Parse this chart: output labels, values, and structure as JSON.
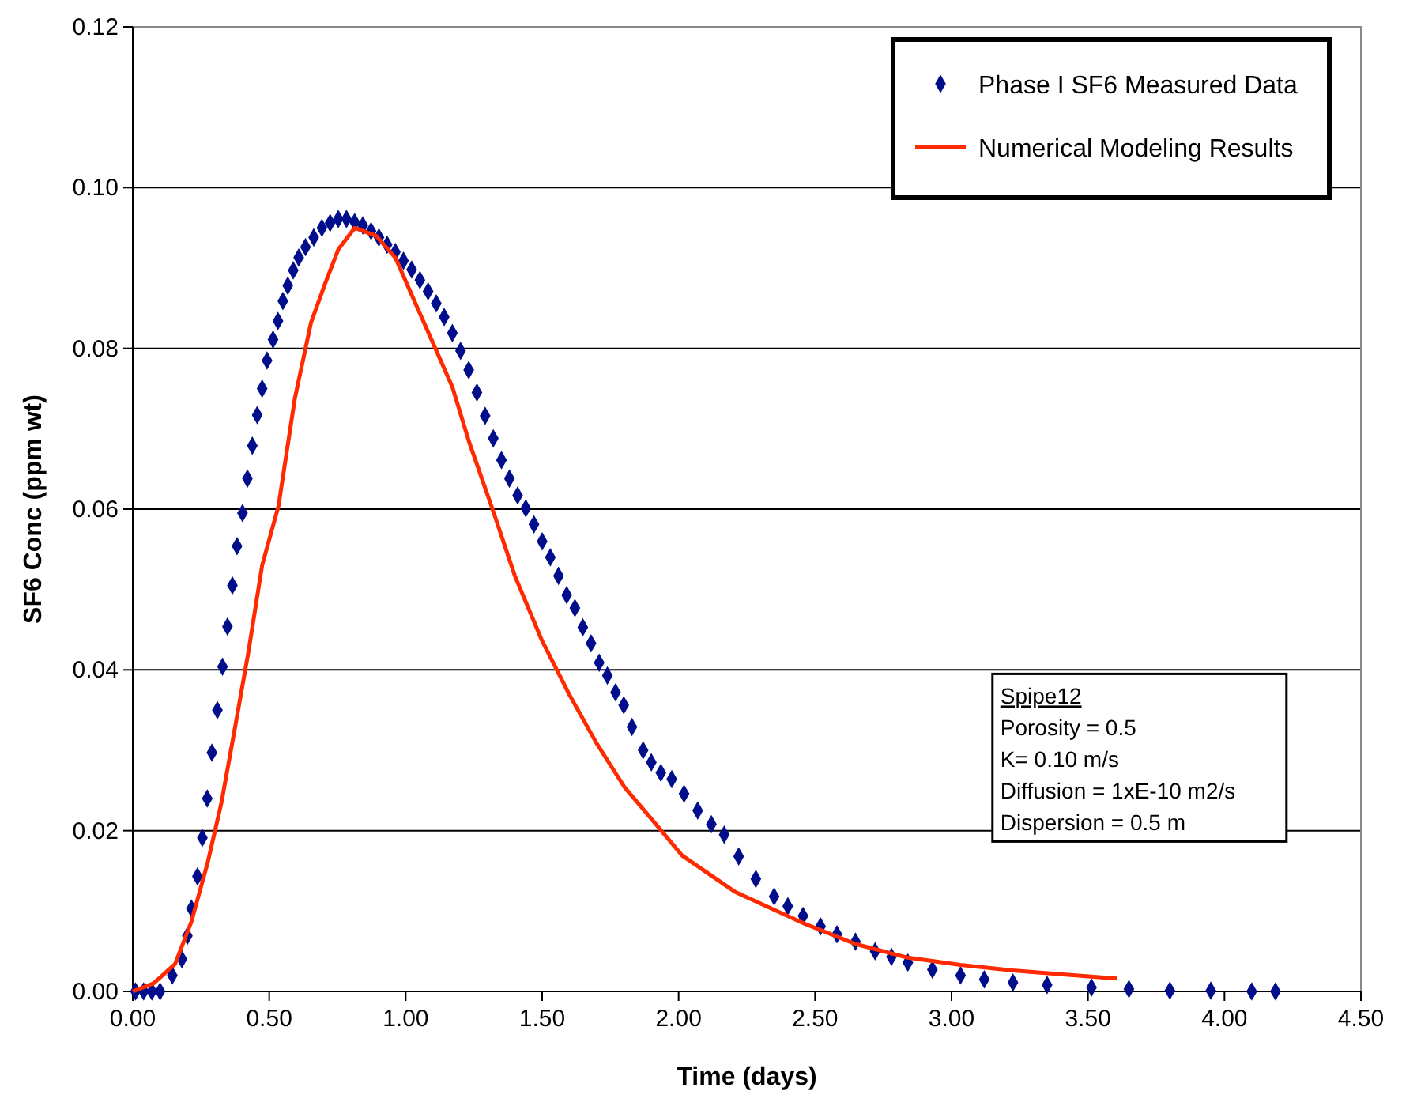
{
  "chart_data": {
    "type": "scatter",
    "xlabel": "Time (days)",
    "ylabel": "SF6 Conc (ppm wt)",
    "xlim": [
      0,
      4.5
    ],
    "xticks": [
      {
        "value": 0,
        "label": "0.00"
      },
      {
        "value": 0.5,
        "label": "0.50"
      },
      {
        "value": 1,
        "label": "1.00"
      },
      {
        "value": 1.5,
        "label": "1.50"
      },
      {
        "value": 2,
        "label": "2.00"
      },
      {
        "value": 2.5,
        "label": "2.50"
      },
      {
        "value": 3,
        "label": "3.00"
      },
      {
        "value": 3.5,
        "label": "3.50"
      },
      {
        "value": 4,
        "label": "4.00"
      },
      {
        "value": 4.5,
        "label": "4.50"
      }
    ],
    "ylim": [
      0,
      0.12
    ],
    "yticks": [
      {
        "value": 0,
        "label": "0.00"
      },
      {
        "value": 0.02,
        "label": "0.02"
      },
      {
        "value": 0.04,
        "label": "0.04"
      },
      {
        "value": 0.06,
        "label": "0.06"
      },
      {
        "value": 0.08,
        "label": "0.08"
      },
      {
        "value": 0.1,
        "label": "0.10"
      },
      {
        "value": 0.12,
        "label": "0.12"
      }
    ],
    "grid": "y",
    "legend": "top right",
    "annotations": [
      "Spipe12",
      "Porosity = 0.5",
      "K= 0.10 m/s",
      "Diffusion = 1xE-10 m2/s",
      "Dispersion  = 0.5 m"
    ],
    "series": [
      {
        "name": "Phase I SF6 Measured Data",
        "marker": "diamond",
        "color": "#000e8c",
        "x": [
          0.01,
          0.04,
          0.07,
          0.1,
          0.145,
          0.18,
          0.2,
          0.215,
          0.237,
          0.255,
          0.273,
          0.29,
          0.31,
          0.329,
          0.347,
          0.365,
          0.382,
          0.402,
          0.42,
          0.438,
          0.456,
          0.474,
          0.492,
          0.514,
          0.532,
          0.55,
          0.568,
          0.588,
          0.608,
          0.633,
          0.663,
          0.693,
          0.723,
          0.753,
          0.783,
          0.813,
          0.843,
          0.873,
          0.902,
          0.932,
          0.962,
          0.992,
          1.022,
          1.052,
          1.082,
          1.112,
          1.141,
          1.171,
          1.201,
          1.231,
          1.261,
          1.291,
          1.321,
          1.351,
          1.38,
          1.41,
          1.44,
          1.47,
          1.5,
          1.53,
          1.56,
          1.59,
          1.62,
          1.649,
          1.679,
          1.709,
          1.739,
          1.769,
          1.799,
          1.829,
          1.87,
          1.9,
          1.935,
          1.975,
          2.02,
          2.07,
          2.12,
          2.167,
          2.22,
          2.283,
          2.35,
          2.4,
          2.456,
          2.52,
          2.58,
          2.648,
          2.72,
          2.78,
          2.84,
          2.93,
          3.033,
          3.12,
          3.225,
          3.35,
          3.513,
          3.65,
          3.8,
          3.95,
          4.1,
          4.187
        ],
        "values": [
          0,
          0,
          0,
          0,
          0.002,
          0.004,
          0.0069,
          0.0103,
          0.0143,
          0.0191,
          0.024,
          0.0297,
          0.035,
          0.0404,
          0.0454,
          0.0505,
          0.0554,
          0.0595,
          0.0638,
          0.0679,
          0.0717,
          0.075,
          0.0785,
          0.0811,
          0.0834,
          0.0859,
          0.0878,
          0.0897,
          0.0913,
          0.0926,
          0.0938,
          0.095,
          0.0956,
          0.0961,
          0.0961,
          0.0957,
          0.0953,
          0.0946,
          0.0938,
          0.0929,
          0.092,
          0.0909,
          0.0898,
          0.0885,
          0.0871,
          0.0856,
          0.0839,
          0.0819,
          0.0797,
          0.0773,
          0.0745,
          0.0716,
          0.0688,
          0.0661,
          0.0638,
          0.0617,
          0.0601,
          0.0581,
          0.056,
          0.054,
          0.0517,
          0.0493,
          0.0477,
          0.0453,
          0.0433,
          0.0409,
          0.0393,
          0.0372,
          0.0356,
          0.0329,
          0.03,
          0.0285,
          0.0272,
          0.0264,
          0.0246,
          0.0225,
          0.0208,
          0.0195,
          0.0168,
          0.014,
          0.0118,
          0.0106,
          0.0094,
          0.0081,
          0.0071,
          0.0062,
          0.005,
          0.0043,
          0.0036,
          0.0027,
          0.002,
          0.0015,
          0.0011,
          0.0008,
          0.0005,
          0.0003,
          0.0001,
          0.0001,
          0,
          0
        ]
      },
      {
        "name": "Numerical Modeling Results",
        "type": "line",
        "marker": "none",
        "line_style": "solid",
        "color": "#ff2a00",
        "x": [
          0,
          0.076,
          0.155,
          0.215,
          0.275,
          0.325,
          0.375,
          0.424,
          0.474,
          0.534,
          0.594,
          0.653,
          0.703,
          0.753,
          0.813,
          0.892,
          0.962,
          1.032,
          1.102,
          1.171,
          1.231,
          1.321,
          1.4,
          1.5,
          1.6,
          1.699,
          1.802,
          1.917,
          2.013,
          2.206,
          2.456,
          2.648,
          2.84,
          3.033,
          3.225,
          3.417,
          3.606
        ],
        "values": [
          0,
          0.001,
          0.0034,
          0.0087,
          0.0161,
          0.0235,
          0.0329,
          0.0423,
          0.053,
          0.0604,
          0.0738,
          0.0832,
          0.0879,
          0.0923,
          0.095,
          0.094,
          0.0913,
          0.0859,
          0.0805,
          0.0752,
          0.0685,
          0.0597,
          0.0517,
          0.0436,
          0.0369,
          0.0309,
          0.0254,
          0.0208,
          0.0169,
          0.0124,
          0.0085,
          0.0059,
          0.0042,
          0.0033,
          0.0026,
          0.0021,
          0.0016
        ]
      }
    ]
  }
}
